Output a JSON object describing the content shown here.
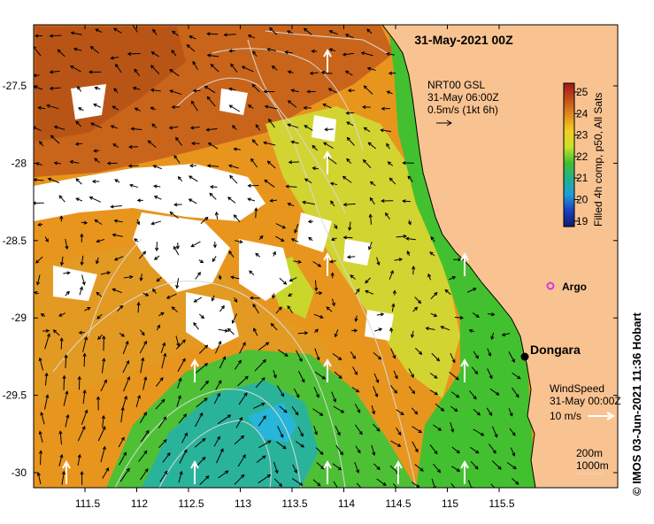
{
  "title": "31-May-2021 00Z",
  "credit": "© IMOS 03-Jun-2021 11:36 Hobart",
  "colors": {
    "land": "#f9c391",
    "ocean_warm": "#c9651b",
    "ocean_mid": "#e8951e",
    "ocean_yellow": "#d2d432",
    "ocean_green": "#43c02f",
    "ocean_cool": "#2ab39b",
    "ocean_cold": "#27b5d9",
    "contour": "#d8d8d8"
  },
  "current_legend": {
    "line1": "NRT00 GSL",
    "line2": "31-May 06:00Z",
    "line3": "0.5m/s (1kt 6h)"
  },
  "wind_legend": {
    "line1": "WindSpeed",
    "line2": "31-May 00:00Z",
    "line3": "10 m/s"
  },
  "depth_legend": {
    "line1": "200m",
    "line2": "1000m"
  },
  "colorbar": {
    "label": "Filled 4h comp, p50, All Sats",
    "ticks": [
      "25",
      "24",
      "23",
      "22",
      "21",
      "20",
      "19"
    ],
    "stops": [
      "#a0181a",
      "#c44d16",
      "#e28c1e",
      "#f2ce1f",
      "#c8e22d",
      "#3fbf2e",
      "#23b08e",
      "#1d9fdc",
      "#1a3dc0",
      "#121c6e"
    ]
  },
  "places": {
    "argo": "Argo",
    "dongara": "Dongara"
  },
  "axes": {
    "lon_ticks": [
      "111.5",
      "112",
      "112.5",
      "113",
      "113.5",
      "114",
      "114.5",
      "115",
      "115.5"
    ],
    "lat_ticks": [
      "-27.5",
      "-28",
      "-28.5",
      "-29",
      "-29.5",
      "-30"
    ]
  }
}
